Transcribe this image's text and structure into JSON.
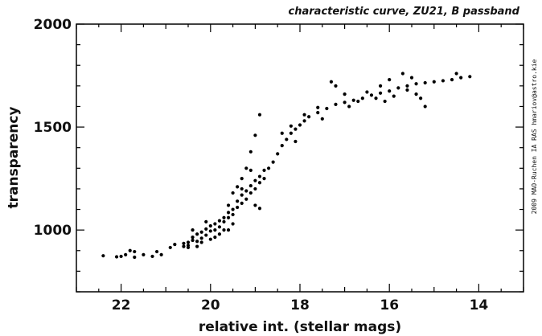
{
  "chart_data": {
    "type": "scatter",
    "title": "characteristic curve, ZU21, B passband",
    "xlabel": "relative int. (stellar mags)",
    "ylabel": "transparency",
    "side_note": "2009 MAO-Ruchen IA RAS hmariov@astro.kie",
    "xlim": [
      23,
      13
    ],
    "ylim": [
      700,
      2000
    ],
    "x_reversed": true,
    "x_ticks": [
      22,
      20,
      18,
      16,
      14
    ],
    "y_ticks": [
      1000,
      1500,
      2000
    ],
    "grid": false,
    "legend": "none",
    "marker_color": "#000000",
    "points": [
      [
        22.4,
        875
      ],
      [
        22.1,
        870
      ],
      [
        22.0,
        872
      ],
      [
        21.9,
        880
      ],
      [
        21.8,
        900
      ],
      [
        21.7,
        895
      ],
      [
        21.7,
        868
      ],
      [
        21.5,
        880
      ],
      [
        21.3,
        872
      ],
      [
        21.2,
        895
      ],
      [
        21.1,
        880
      ],
      [
        20.9,
        915
      ],
      [
        20.8,
        930
      ],
      [
        20.6,
        920
      ],
      [
        20.6,
        935
      ],
      [
        20.5,
        940
      ],
      [
        20.5,
        925
      ],
      [
        20.4,
        950
      ],
      [
        20.4,
        965
      ],
      [
        20.3,
        945
      ],
      [
        20.3,
        980
      ],
      [
        20.2,
        960
      ],
      [
        20.2,
        990
      ],
      [
        20.1,
        975
      ],
      [
        20.1,
        1005
      ],
      [
        20.0,
        995
      ],
      [
        20.0,
        1020
      ],
      [
        19.9,
        1000
      ],
      [
        19.9,
        1030
      ],
      [
        19.8,
        1015
      ],
      [
        19.8,
        1045
      ],
      [
        19.7,
        1040
      ],
      [
        19.7,
        1060
      ],
      [
        19.6,
        1060
      ],
      [
        19.6,
        1085
      ],
      [
        19.5,
        1075
      ],
      [
        19.5,
        1100
      ],
      [
        19.4,
        1110
      ],
      [
        19.4,
        1140
      ],
      [
        19.3,
        1130
      ],
      [
        19.3,
        1170
      ],
      [
        19.2,
        1150
      ],
      [
        19.2,
        1190
      ],
      [
        19.1,
        1180
      ],
      [
        19.1,
        1215
      ],
      [
        19.0,
        1200
      ],
      [
        19.0,
        1240
      ],
      [
        18.9,
        1230
      ],
      [
        18.9,
        1260
      ],
      [
        18.8,
        1250
      ],
      [
        18.8,
        1290
      ],
      [
        18.7,
        1300
      ],
      [
        18.6,
        1330
      ],
      [
        18.5,
        1370
      ],
      [
        18.4,
        1410
      ],
      [
        18.3,
        1440
      ],
      [
        18.2,
        1470
      ],
      [
        18.1,
        1490
      ],
      [
        18.0,
        1510
      ],
      [
        17.9,
        1530
      ],
      [
        17.8,
        1550
      ],
      [
        17.6,
        1570
      ],
      [
        17.4,
        1590
      ],
      [
        17.2,
        1610
      ],
      [
        17.0,
        1620
      ],
      [
        16.8,
        1630
      ],
      [
        16.6,
        1640
      ],
      [
        16.4,
        1655
      ],
      [
        16.2,
        1665
      ],
      [
        16.0,
        1675
      ],
      [
        15.8,
        1690
      ],
      [
        15.6,
        1700
      ],
      [
        15.4,
        1710
      ],
      [
        15.2,
        1715
      ],
      [
        15.0,
        1720
      ],
      [
        14.8,
        1725
      ],
      [
        14.6,
        1730
      ],
      [
        14.4,
        1740
      ],
      [
        14.2,
        1745
      ],
      [
        19.6,
        1120
      ],
      [
        19.5,
        1180
      ],
      [
        19.3,
        1250
      ],
      [
        19.2,
        1300
      ],
      [
        19.1,
        1380
      ],
      [
        19.0,
        1460
      ],
      [
        18.9,
        1560
      ],
      [
        19.4,
        1210
      ],
      [
        19.0,
        1120
      ],
      [
        18.9,
        1105
      ],
      [
        19.1,
        1290
      ],
      [
        19.3,
        1200
      ],
      [
        17.3,
        1720
      ],
      [
        17.2,
        1700
      ],
      [
        17.0,
        1660
      ],
      [
        16.9,
        1600
      ],
      [
        16.0,
        1730
      ],
      [
        15.7,
        1760
      ],
      [
        15.5,
        1740
      ],
      [
        15.4,
        1660
      ],
      [
        15.3,
        1640
      ],
      [
        15.2,
        1600
      ],
      [
        14.5,
        1760
      ],
      [
        16.3,
        1640
      ],
      [
        16.1,
        1625
      ],
      [
        16.7,
        1625
      ],
      [
        17.6,
        1595
      ],
      [
        17.9,
        1560
      ],
      [
        18.1,
        1430
      ],
      [
        18.2,
        1505
      ],
      [
        18.4,
        1470
      ],
      [
        17.5,
        1540
      ],
      [
        16.5,
        1670
      ],
      [
        16.2,
        1700
      ],
      [
        15.9,
        1650
      ],
      [
        15.6,
        1680
      ],
      [
        20.2,
        940
      ],
      [
        20.0,
        955
      ],
      [
        19.8,
        980
      ],
      [
        19.7,
        1000
      ],
      [
        20.4,
        1000
      ],
      [
        20.1,
        1040
      ],
      [
        19.5,
        1030
      ],
      [
        19.6,
        1000
      ],
      [
        20.3,
        920
      ],
      [
        20.5,
        915
      ],
      [
        19.9,
        965
      ]
    ]
  }
}
